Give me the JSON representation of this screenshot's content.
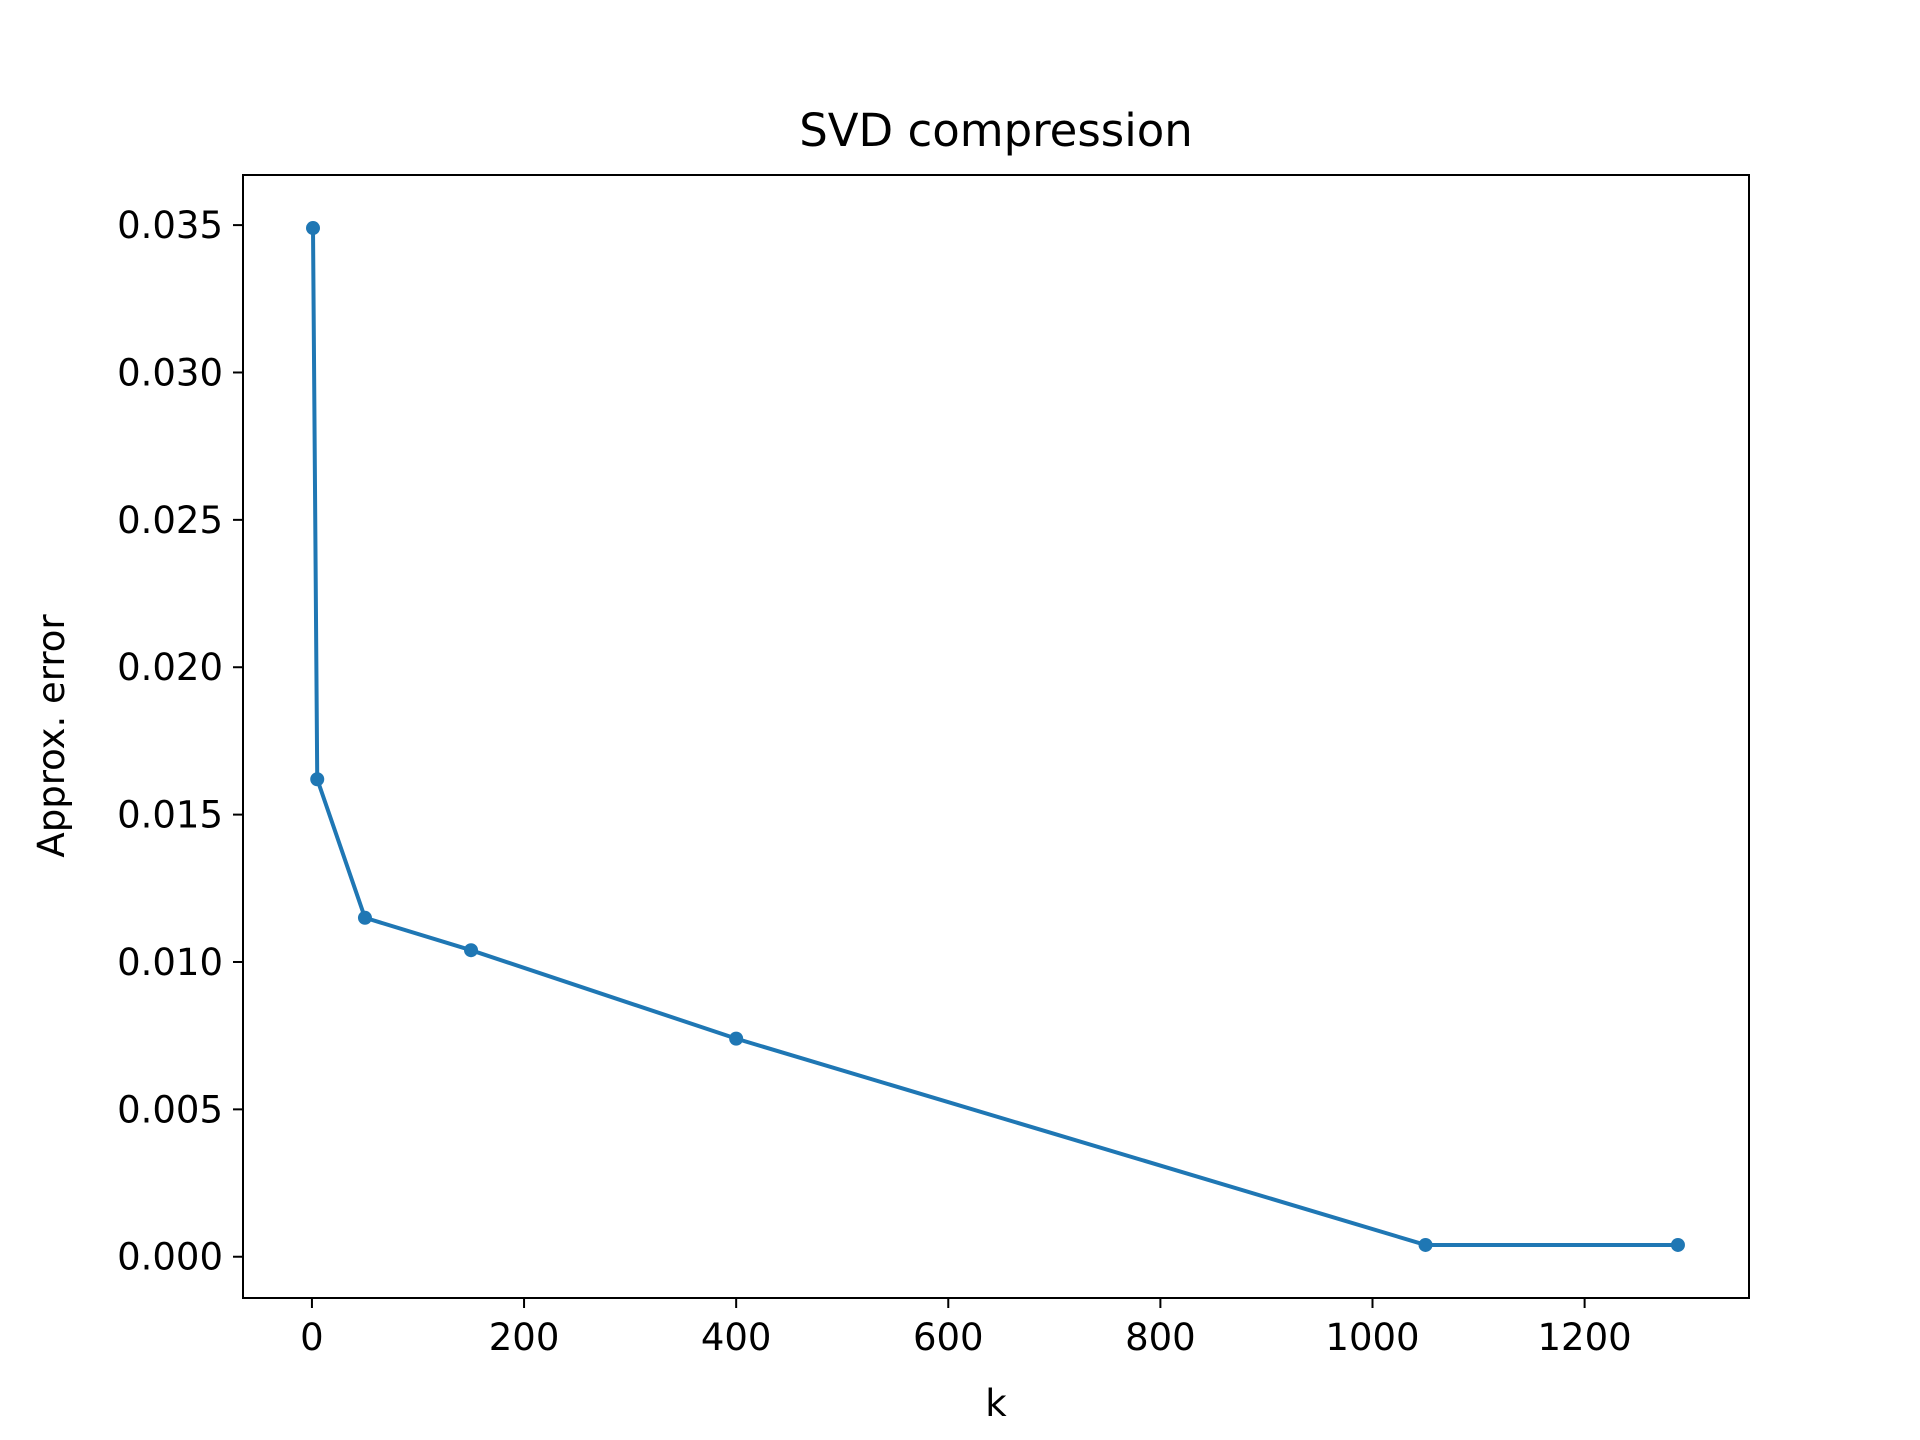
{
  "chart_data": {
    "type": "line",
    "title": "SVD compression",
    "xlabel": "k",
    "ylabel": "Approx. error",
    "xlim": [
      -65,
      1355
    ],
    "ylim": [
      -0.0014,
      0.0367
    ],
    "xticks": [
      0,
      200,
      400,
      600,
      800,
      1000,
      1200
    ],
    "xtick_labels": [
      "0",
      "200",
      "400",
      "600",
      "800",
      "1000",
      "1200"
    ],
    "yticks": [
      0.0,
      0.005,
      0.01,
      0.015,
      0.02,
      0.025,
      0.03,
      0.035
    ],
    "ytick_labels": [
      "0.000",
      "0.005",
      "0.010",
      "0.015",
      "0.020",
      "0.025",
      "0.030",
      "0.035"
    ],
    "grid": false,
    "series": [
      {
        "color": "#1f77b4",
        "marker": "circle",
        "x": [
          1,
          5,
          50,
          150,
          400,
          1050,
          1288
        ],
        "y": [
          0.0349,
          0.0162,
          0.0115,
          0.0104,
          0.0074,
          0.0004,
          0.0004
        ]
      }
    ]
  }
}
